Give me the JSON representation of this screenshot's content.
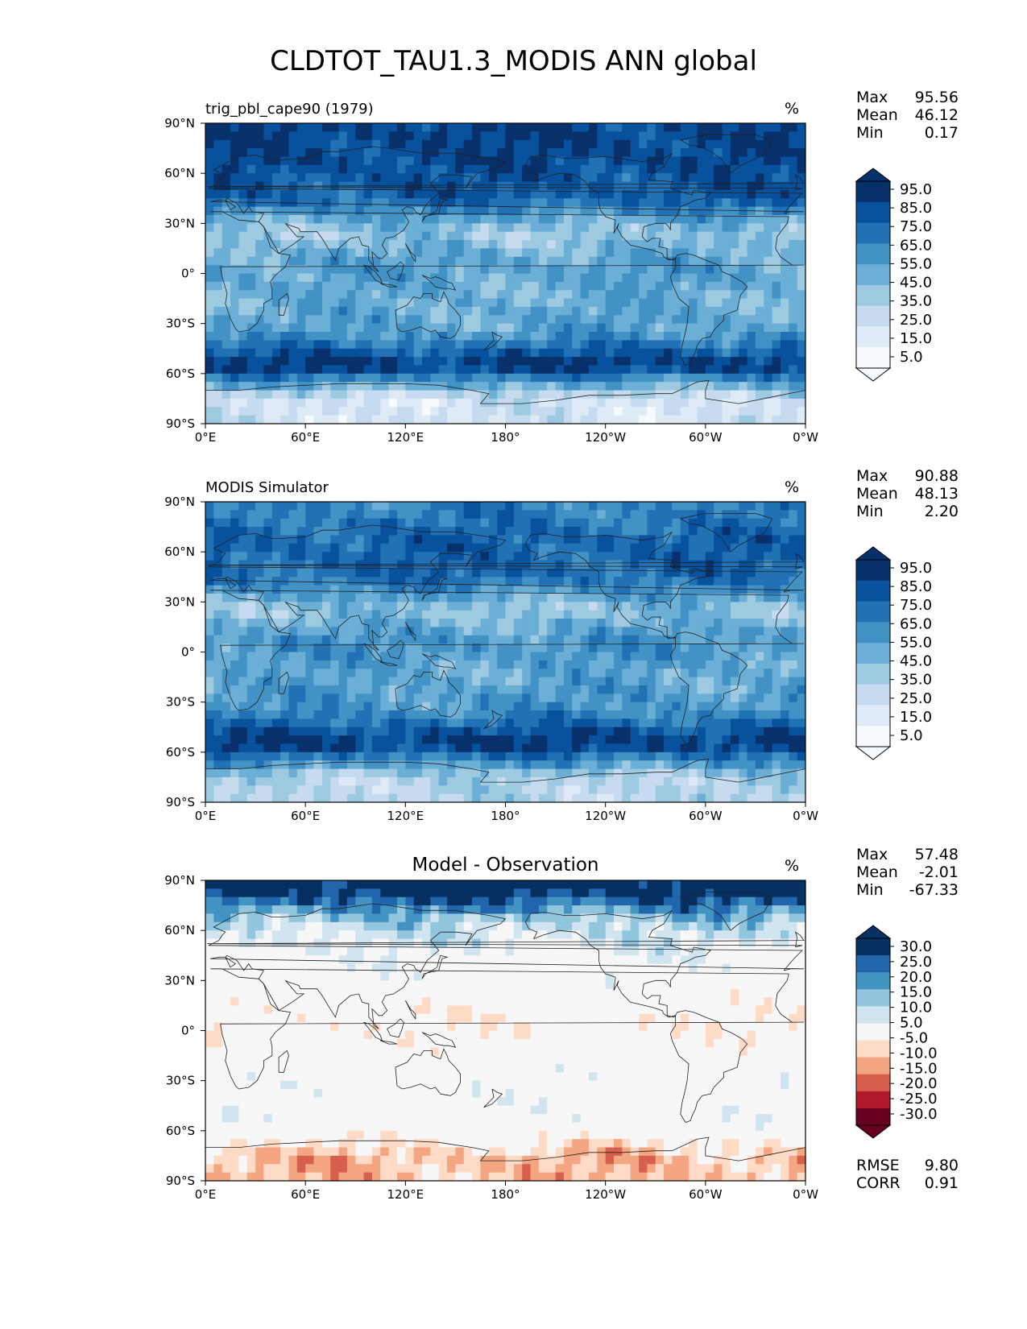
{
  "figure_title": "CLDTOT_TAU1.3_MODIS ANN global",
  "colors": {
    "blues": [
      "#f7fbff",
      "#deebf7",
      "#c6dbef",
      "#9ecae1",
      "#6baed6",
      "#4292c6",
      "#2171b5",
      "#08519c",
      "#08306b"
    ],
    "diff": [
      "#67001f",
      "#b2182b",
      "#d6604d",
      "#f4a582",
      "#fddbc7",
      "#f7f7f7",
      "#d1e5f0",
      "#92c5de",
      "#4393c3",
      "#2166ac",
      "#053061"
    ]
  },
  "chart_data": [
    {
      "type": "heatmap",
      "projection": "cylindrical (plate carrée) world map",
      "title_left": "trig_pbl_cape90 (1979)",
      "title_center": "",
      "units": "%",
      "stats": [
        {
          "label": "Max",
          "value": "95.56"
        },
        {
          "label": "Mean",
          "value": "46.12"
        },
        {
          "label": "Min",
          "value": "0.17"
        }
      ],
      "extra_stats": [],
      "colorbar_ticks": [
        "95.0",
        "85.0",
        "75.0",
        "65.0",
        "55.0",
        "45.0",
        "35.0",
        "25.0",
        "15.0",
        "5.0"
      ],
      "colorbar_extend": "both",
      "palette": "blues",
      "xticks": [
        "0°E",
        "60°E",
        "120°E",
        "180°",
        "120°W",
        "60°W",
        "0°W"
      ],
      "yticks": [
        "90°N",
        "60°N",
        "30°N",
        "0°",
        "30°S",
        "60°S",
        "90°S"
      ],
      "xlim": [
        0,
        360
      ],
      "ylim": [
        -90,
        90
      ],
      "zonal_pattern": [
        {
          "lat": 85,
          "value": 75
        },
        {
          "lat": 65,
          "value": 72
        },
        {
          "lat": 45,
          "value": 65
        },
        {
          "lat": 25,
          "value": 30
        },
        {
          "lat": 5,
          "value": 45
        },
        {
          "lat": -15,
          "value": 40
        },
        {
          "lat": -35,
          "value": 45
        },
        {
          "lat": -55,
          "value": 80
        },
        {
          "lat": -75,
          "value": 15
        }
      ]
    },
    {
      "type": "heatmap",
      "projection": "cylindrical (plate carrée) world map",
      "title_left": "MODIS Simulator",
      "title_center": "",
      "units": "%",
      "stats": [
        {
          "label": "Max",
          "value": "90.88"
        },
        {
          "label": "Mean",
          "value": "48.13"
        },
        {
          "label": "Min",
          "value": "2.20"
        }
      ],
      "extra_stats": [],
      "colorbar_ticks": [
        "95.0",
        "85.0",
        "75.0",
        "65.0",
        "55.0",
        "45.0",
        "35.0",
        "25.0",
        "15.0",
        "5.0"
      ],
      "colorbar_extend": "both",
      "palette": "blues",
      "xticks": [
        "0°E",
        "60°E",
        "120°E",
        "180°",
        "120°W",
        "60°W",
        "0°W"
      ],
      "yticks": [
        "90°N",
        "60°N",
        "30°N",
        "0°",
        "30°S",
        "60°S",
        "90°S"
      ],
      "xlim": [
        0,
        360
      ],
      "ylim": [
        -90,
        90
      ],
      "zonal_pattern": [
        {
          "lat": 85,
          "value": 55
        },
        {
          "lat": 65,
          "value": 65
        },
        {
          "lat": 45,
          "value": 62
        },
        {
          "lat": 25,
          "value": 32
        },
        {
          "lat": 5,
          "value": 50
        },
        {
          "lat": -15,
          "value": 42
        },
        {
          "lat": -35,
          "value": 50
        },
        {
          "lat": -55,
          "value": 80
        },
        {
          "lat": -75,
          "value": 25
        }
      ]
    },
    {
      "type": "heatmap",
      "projection": "cylindrical (plate carrée) world map",
      "title_left": "",
      "title_center": "Model - Observation",
      "units": "%",
      "stats": [
        {
          "label": "Max",
          "value": "57.48"
        },
        {
          "label": "Mean",
          "value": "-2.01"
        },
        {
          "label": "Min",
          "value": "-67.33"
        }
      ],
      "extra_stats": [
        {
          "label": "RMSE",
          "value": "9.80"
        },
        {
          "label": "CORR",
          "value": "0.91"
        }
      ],
      "colorbar_ticks": [
        "30.0",
        "25.0",
        "20.0",
        "15.0",
        "10.0",
        "5.0",
        "-5.0",
        "-10.0",
        "-15.0",
        "-20.0",
        "-25.0",
        "-30.0"
      ],
      "colorbar_extend": "both",
      "palette": "diff",
      "xticks": [
        "0°E",
        "60°E",
        "120°E",
        "180°",
        "120°W",
        "60°W",
        "0°W"
      ],
      "yticks": [
        "90°N",
        "60°N",
        "30°N",
        "0°",
        "30°S",
        "60°S",
        "90°S"
      ],
      "xlim": [
        0,
        360
      ],
      "ylim": [
        -90,
        90
      ],
      "zonal_pattern": [
        {
          "lat": 85,
          "value": 30
        },
        {
          "lat": 65,
          "value": 10
        },
        {
          "lat": 45,
          "value": 2
        },
        {
          "lat": 25,
          "value": -2
        },
        {
          "lat": 5,
          "value": -8
        },
        {
          "lat": -15,
          "value": -3
        },
        {
          "lat": -35,
          "value": 0
        },
        {
          "lat": -55,
          "value": 0
        },
        {
          "lat": -75,
          "value": -15
        }
      ]
    }
  ]
}
